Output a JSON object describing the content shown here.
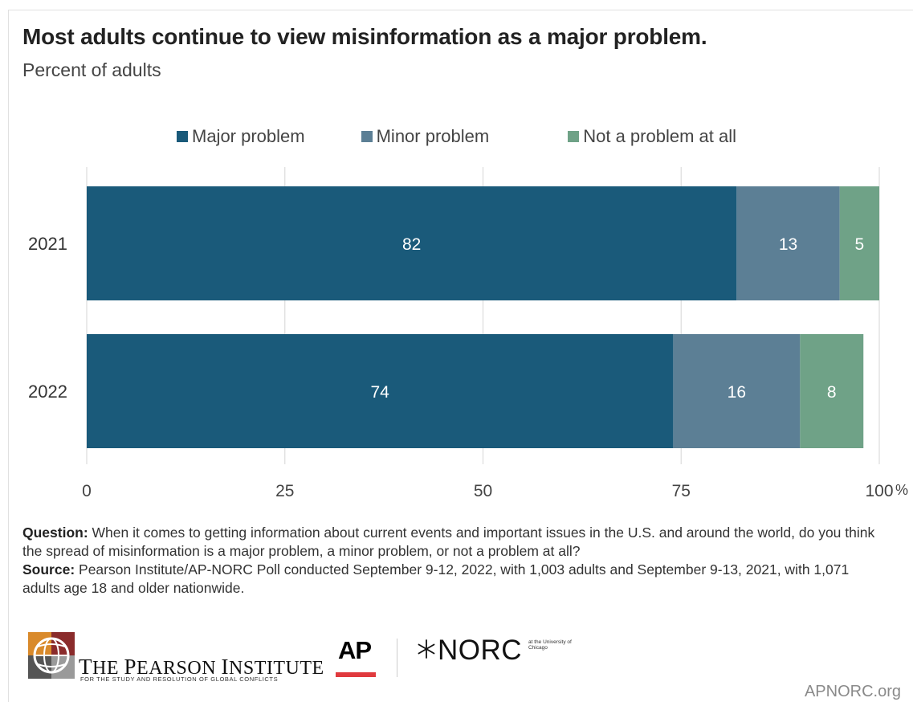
{
  "title": "Most adults continue to view misinformation as a major problem.",
  "subtitle": "Percent of adults",
  "legend": [
    {
      "label": "Major problem",
      "color": "#1a5a7a"
    },
    {
      "label": "Minor problem",
      "color": "#5c7f95"
    },
    {
      "label": "Not a problem at all",
      "color": "#6fa287"
    }
  ],
  "chart_data": {
    "type": "bar",
    "orientation": "horizontal",
    "stacked": true,
    "categories": [
      "2021",
      "2022"
    ],
    "series": [
      {
        "name": "Major problem",
        "values": [
          82,
          74
        ],
        "color": "#1a5a7a"
      },
      {
        "name": "Minor problem",
        "values": [
          13,
          16
        ],
        "color": "#5c7f95"
      },
      {
        "name": "Not a problem at all",
        "values": [
          5,
          8
        ],
        "color": "#6fa287"
      }
    ],
    "xlim": [
      0,
      100
    ],
    "x_ticks": [
      "0",
      "25",
      "50",
      "75",
      "100"
    ],
    "x_unit": "%",
    "grid": true,
    "legend_position": "top"
  },
  "notes": {
    "question_label": "Question:",
    "question_text": " When it comes to getting information about current events and important issues in the U.S. and around the world, do you think the spread of misinformation is a major problem, a minor problem, or not a problem at all?",
    "source_label": "Source:",
    "source_text": " Pearson Institute/AP-NORC Poll conducted September 9-12, 2022, with 1,003 adults and September 9-13, 2021, with 1,071 adults age 18 and older nationwide."
  },
  "logos": {
    "pearson_name": "The Pearson Institute",
    "pearson_tagline": "FOR THE STUDY AND RESOLUTION OF GLOBAL CONFLICTS",
    "ap": "AP",
    "norc": "NORC",
    "norc_affiliation": "at the University of Chicago"
  },
  "footer_url": "APNORC.org"
}
